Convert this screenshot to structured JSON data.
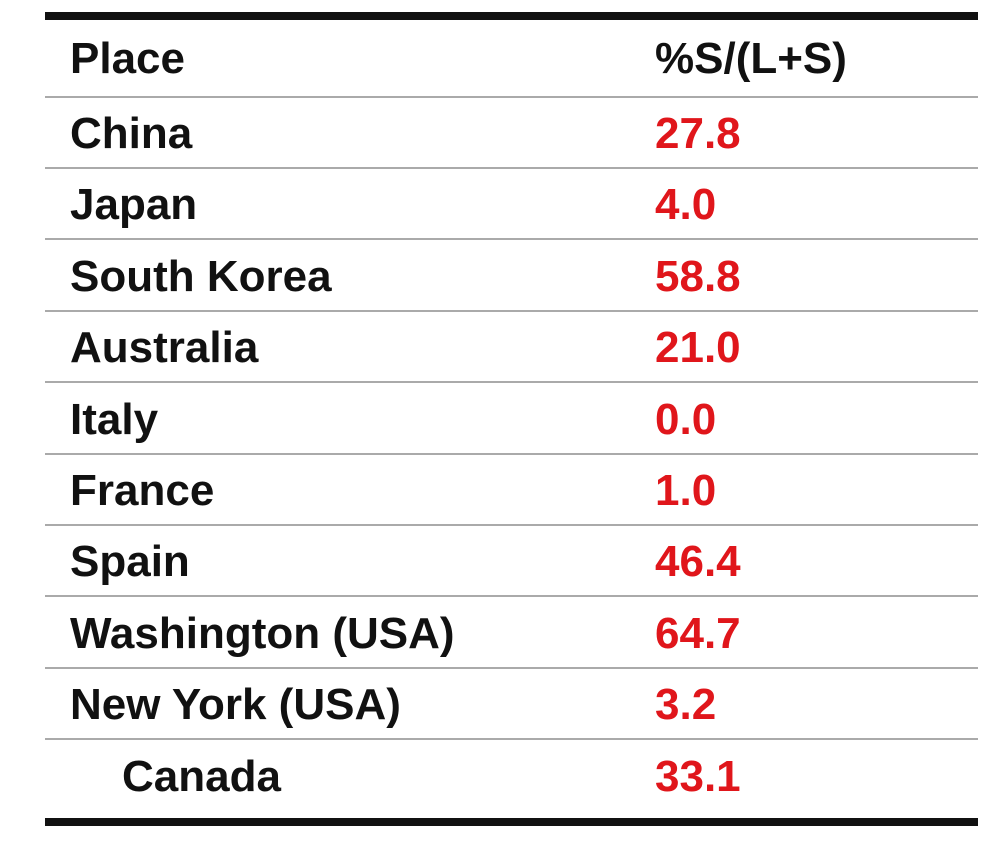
{
  "table": {
    "header": [
      "Place",
      "%S/(L+S)"
    ],
    "rows": [
      [
        "China",
        "27.8"
      ],
      [
        "Japan",
        "4.0"
      ],
      [
        "South Korea",
        "58.8"
      ],
      [
        "Australia",
        "21.0"
      ],
      [
        "Italy",
        "0.0"
      ],
      [
        "France",
        "1.0"
      ],
      [
        "Spain",
        "46.4"
      ],
      [
        "Washington (USA)",
        "64.7"
      ],
      [
        "New York (USA)",
        "3.2"
      ],
      [
        "Canada",
        "33.1"
      ]
    ]
  }
}
